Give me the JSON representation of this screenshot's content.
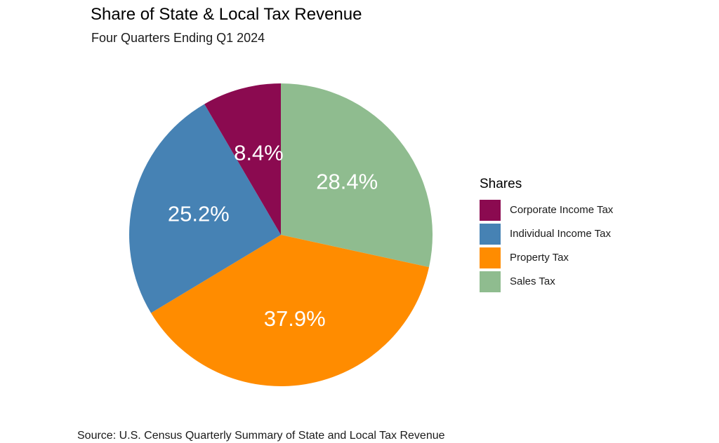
{
  "title": "Share of State & Local Tax Revenue",
  "subtitle": "Four Quarters Ending Q1 2024",
  "caption": "Source: U.S. Census Quarterly Summary of State and Local Tax Revenue",
  "legend": {
    "title": "Shares",
    "placement": "right"
  },
  "chart_data": {
    "type": "pie",
    "title": "Share of State & Local Tax Revenue",
    "subtitle": "Four Quarters Ending Q1 2024",
    "start_angle": "12 o'clock",
    "direction": "clockwise",
    "slices": [
      {
        "name": "Sales Tax",
        "value": 28.4,
        "label": "28.4%",
        "color": "#8fbc8f"
      },
      {
        "name": "Property Tax",
        "value": 37.9,
        "label": "37.9%",
        "color": "#ff8c00"
      },
      {
        "name": "Individual Income Tax",
        "value": 25.2,
        "label": "25.2%",
        "color": "#4682b4"
      },
      {
        "name": "Corporate Income Tax",
        "value": 8.4,
        "label": "8.4%",
        "color": "#8b0a50"
      }
    ],
    "legend_order": [
      "Corporate Income Tax",
      "Individual Income Tax",
      "Property Tax",
      "Sales Tax"
    ]
  }
}
